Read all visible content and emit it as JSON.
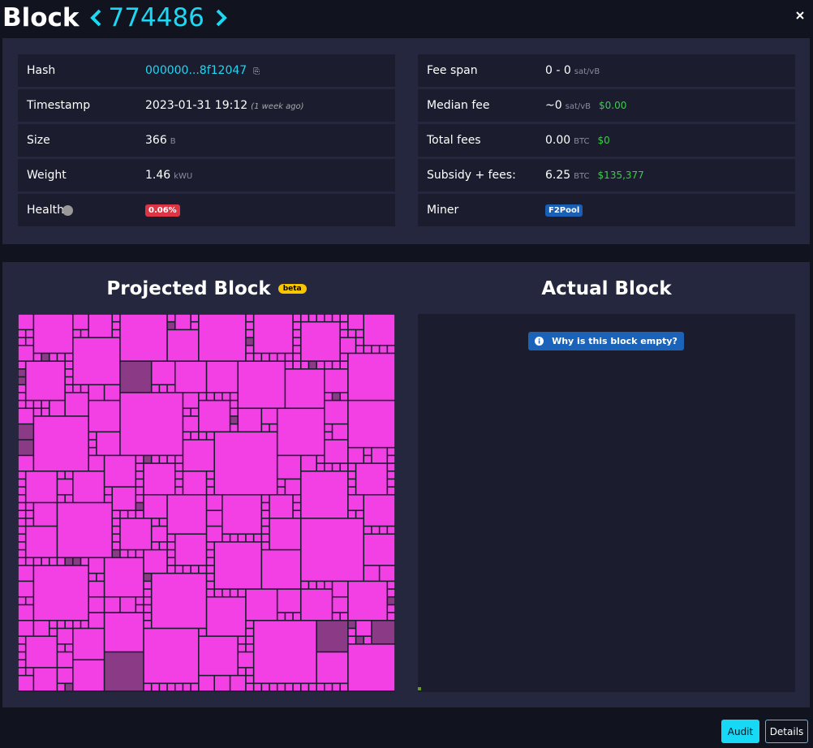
{
  "header": {
    "title": "Block",
    "height": "774486"
  },
  "details": {
    "left": [
      {
        "label": "Hash",
        "value": "000000...8f12047",
        "value_color": "#1bd8f4"
      },
      {
        "label": "Timestamp",
        "value": "2023-01-31 19:12",
        "note": "(1 week ago)"
      },
      {
        "label": "Size",
        "value": "366",
        "unit": "B"
      },
      {
        "label": "Weight",
        "value": "1.46",
        "unit": "kWU"
      },
      {
        "label": "Health",
        "badge": "0.06%",
        "badge_color": "#dc3545"
      }
    ],
    "right": [
      {
        "label": "Fee span",
        "value": "0 - 0",
        "unit": "sat/vB"
      },
      {
        "label": "Median fee",
        "value": "~0",
        "unit": "sat/vB",
        "fiat": "$0.00"
      },
      {
        "label": "Total fees",
        "value": "0.00",
        "unit": "BTC",
        "fiat": "$0"
      },
      {
        "label": "Subsidy + fees:",
        "value": "6.25",
        "unit": "BTC",
        "fiat": "$135,377"
      },
      {
        "label": "Miner",
        "badge": "F2Pool",
        "badge_color": "#1a5fb4"
      }
    ]
  },
  "overview": {
    "projected_title": "Projected Block",
    "beta": "beta",
    "actual_title": "Actual Block",
    "empty_button": "Why is this block empty?"
  },
  "footer": {
    "audit": "Audit",
    "details": "Details"
  }
}
